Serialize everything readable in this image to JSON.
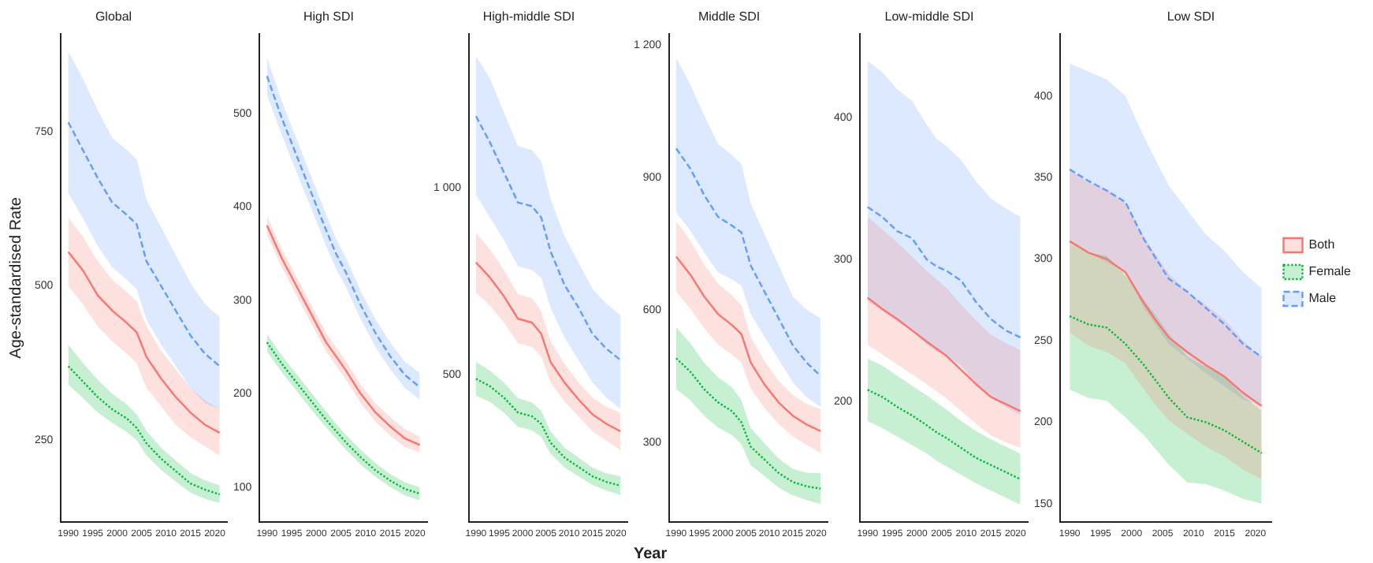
{
  "chart_data": [
    {
      "type": "line",
      "title": "Global",
      "ylabel": "Age-standardised Rate",
      "x": [
        1990,
        1993,
        1996,
        1999,
        2002,
        2004,
        2006,
        2009,
        2012,
        2015,
        2018,
        2021
      ],
      "xlim": [
        1988.5,
        2022.5
      ],
      "xticks": [
        1990,
        1995,
        2000,
        2005,
        2010,
        2015,
        2020
      ],
      "ylim": [
        118,
        908
      ],
      "yticks": [
        250,
        500,
        750
      ],
      "grid": false,
      "legend": false,
      "series": [
        {
          "color": "#f8766d",
          "line_style": "solid",
          "values": [
            555,
            525,
            485,
            460,
            440,
            425,
            385,
            350,
            320,
            295,
            275,
            262
          ],
          "lower": [
            500,
            470,
            435,
            410,
            390,
            375,
            335,
            305,
            275,
            255,
            240,
            225
          ],
          "upper": [
            610,
            580,
            540,
            510,
            490,
            475,
            435,
            395,
            365,
            335,
            315,
            300
          ]
        },
        {
          "color": "#00ba38",
          "line_style": "dotted",
          "values": [
            370,
            345,
            320,
            300,
            285,
            270,
            245,
            220,
            200,
            180,
            170,
            162
          ],
          "lower": [
            340,
            318,
            295,
            278,
            263,
            250,
            225,
            202,
            183,
            165,
            155,
            148
          ],
          "upper": [
            405,
            375,
            348,
            325,
            308,
            292,
            265,
            238,
            217,
            197,
            185,
            177
          ]
        },
        {
          "color": "#619cff",
          "line_style": "dashed",
          "values": [
            765,
            720,
            675,
            635,
            615,
            600,
            540,
            500,
            460,
            420,
            390,
            370
          ],
          "lower": [
            650,
            610,
            565,
            530,
            510,
            495,
            445,
            405,
            370,
            335,
            310,
            300
          ],
          "upper": [
            880,
            835,
            785,
            740,
            720,
            705,
            640,
            595,
            550,
            505,
            470,
            450
          ]
        }
      ]
    },
    {
      "type": "line",
      "title": "High SDI",
      "x": [
        1990,
        1993,
        1996,
        1999,
        2002,
        2004,
        2006,
        2009,
        2012,
        2015,
        2018,
        2021
      ],
      "xlim": [
        1988.5,
        2022.5
      ],
      "xticks": [
        1990,
        1995,
        2000,
        2005,
        2010,
        2015,
        2020
      ],
      "ylim": [
        63,
        585
      ],
      "yticks": [
        100,
        200,
        300,
        400,
        500
      ],
      "grid": false,
      "legend": false,
      "series": [
        {
          "color": "#f8766d",
          "line_style": "solid",
          "values": [
            380,
            345,
            315,
            285,
            255,
            240,
            225,
            200,
            180,
            165,
            152,
            145
          ],
          "lower": [
            370,
            335,
            305,
            275,
            245,
            230,
            215,
            190,
            170,
            155,
            143,
            137
          ],
          "upper": [
            390,
            355,
            325,
            295,
            265,
            250,
            235,
            210,
            190,
            175,
            162,
            154
          ]
        },
        {
          "color": "#00ba38",
          "line_style": "dotted",
          "values": [
            255,
            232,
            212,
            192,
            172,
            160,
            148,
            132,
            118,
            107,
            98,
            93
          ],
          "lower": [
            245,
            223,
            203,
            183,
            164,
            152,
            140,
            124,
            111,
            100,
            91,
            86
          ],
          "upper": [
            264,
            241,
            221,
            201,
            181,
            168,
            156,
            140,
            126,
            114,
            105,
            100
          ]
        },
        {
          "color": "#619cff",
          "line_style": "dashed",
          "values": [
            540,
            495,
            455,
            415,
            375,
            350,
            330,
            295,
            265,
            240,
            220,
            207
          ],
          "lower": [
            520,
            477,
            437,
            398,
            358,
            334,
            314,
            280,
            250,
            226,
            206,
            194
          ],
          "upper": [
            560,
            513,
            473,
            432,
            392,
            366,
            346,
            310,
            280,
            255,
            234,
            222
          ]
        }
      ]
    },
    {
      "type": "line",
      "title": "High-middle SDI",
      "x": [
        1990,
        1993,
        1996,
        1999,
        2002,
        2004,
        2006,
        2009,
        2012,
        2015,
        2018,
        2021
      ],
      "xlim": [
        1988.5,
        2022.5
      ],
      "xticks": [
        1990,
        1995,
        2000,
        2005,
        2010,
        2015,
        2020
      ],
      "ylim": [
        109,
        1409
      ],
      "yticks": [
        500,
        {
          "value": 1000,
          "label": "1 000"
        }
      ],
      "grid": false,
      "legend": false,
      "series": [
        {
          "color": "#f8766d",
          "line_style": "solid",
          "values": [
            800,
            760,
            710,
            650,
            640,
            610,
            535,
            480,
            435,
            395,
            370,
            350
          ],
          "lower": [
            720,
            685,
            640,
            585,
            575,
            550,
            480,
            430,
            390,
            350,
            325,
            300
          ],
          "upper": [
            880,
            835,
            780,
            715,
            705,
            670,
            590,
            530,
            480,
            440,
            415,
            400
          ]
        },
        {
          "color": "#00ba38",
          "line_style": "dotted",
          "values": [
            490,
            470,
            440,
            400,
            390,
            370,
            320,
            280,
            255,
            230,
            215,
            205
          ],
          "lower": [
            445,
            428,
            400,
            362,
            353,
            335,
            290,
            253,
            230,
            207,
            192,
            180
          ],
          "upper": [
            535,
            512,
            480,
            438,
            427,
            405,
            350,
            307,
            280,
            253,
            238,
            230
          ]
        },
        {
          "color": "#619cff",
          "line_style": "dashed",
          "values": [
            1190,
            1120,
            1040,
            960,
            950,
            920,
            830,
            740,
            680,
            610,
            570,
            540
          ],
          "lower": [
            980,
            920,
            860,
            790,
            780,
            760,
            680,
            600,
            540,
            480,
            440,
            410
          ],
          "upper": [
            1350,
            1290,
            1200,
            1110,
            1100,
            1070,
            970,
            870,
            800,
            730,
            690,
            660
          ]
        }
      ]
    },
    {
      "type": "line",
      "title": "Middle SDI",
      "xlabel": "Year",
      "x": [
        1990,
        1993,
        1996,
        1999,
        2002,
        2004,
        2006,
        2009,
        2012,
        2015,
        2018,
        2021
      ],
      "xlim": [
        1988.5,
        2022.5
      ],
      "xticks": [
        1990,
        1995,
        2000,
        2005,
        2010,
        2015,
        2020
      ],
      "ylim": [
        120,
        1224
      ],
      "yticks": [
        300,
        600,
        900,
        {
          "value": 1200,
          "label": "1 200"
        }
      ],
      "grid": false,
      "legend": false,
      "series": [
        {
          "color": "#f8766d",
          "line_style": "solid",
          "values": [
            720,
            680,
            630,
            590,
            565,
            545,
            480,
            430,
            390,
            360,
            340,
            325
          ],
          "lower": [
            640,
            603,
            558,
            521,
            498,
            480,
            422,
            377,
            341,
            313,
            294,
            275
          ],
          "upper": [
            800,
            757,
            702,
            659,
            632,
            610,
            538,
            483,
            439,
            407,
            386,
            375
          ]
        },
        {
          "color": "#00ba38",
          "line_style": "dotted",
          "values": [
            490,
            460,
            420,
            390,
            370,
            345,
            290,
            260,
            230,
            210,
            200,
            195
          ],
          "lower": [
            420,
            395,
            360,
            333,
            316,
            295,
            248,
            223,
            197,
            180,
            169,
            160
          ],
          "upper": [
            560,
            525,
            480,
            447,
            424,
            395,
            332,
            297,
            263,
            240,
            231,
            230
          ]
        },
        {
          "color": "#619cff",
          "line_style": "dashed",
          "values": [
            965,
            920,
            860,
            810,
            790,
            775,
            700,
            640,
            580,
            520,
            480,
            450
          ],
          "lower": [
            820,
            780,
            730,
            685,
            668,
            655,
            590,
            538,
            487,
            436,
            402,
            380
          ],
          "upper": [
            1170,
            1110,
            1040,
            975,
            950,
            930,
            840,
            770,
            700,
            630,
            600,
            580
          ]
        }
      ]
    },
    {
      "type": "line",
      "title": "Low-middle SDI",
      "x": [
        1990,
        1993,
        1996,
        1999,
        2002,
        2004,
        2006,
        2009,
        2012,
        2015,
        2018,
        2021
      ],
      "xlim": [
        1988.5,
        2022.5
      ],
      "xticks": [
        1990,
        1995,
        2000,
        2005,
        2010,
        2015,
        2020
      ],
      "ylim": [
        115,
        459
      ],
      "yticks": [
        200,
        300,
        400
      ],
      "grid": false,
      "legend": false,
      "series": [
        {
          "color": "#f8766d",
          "line_style": "solid",
          "values": [
            273,
            265,
            258,
            250,
            242,
            237,
            232,
            222,
            212,
            203,
            198,
            193
          ],
          "lower": [
            240,
            233,
            226,
            219,
            212,
            207,
            202,
            193,
            184,
            176,
            171,
            167
          ],
          "upper": [
            330,
            321,
            312,
            302,
            292,
            286,
            280,
            268,
            257,
            247,
            241,
            236
          ]
        },
        {
          "color": "#00ba38",
          "line_style": "dotted",
          "values": [
            208,
            203,
            196,
            190,
            183,
            178,
            174,
            167,
            160,
            155,
            150,
            145
          ],
          "lower": [
            186,
            181,
            175,
            169,
            163,
            158,
            154,
            148,
            142,
            137,
            132,
            127
          ],
          "upper": [
            230,
            225,
            218,
            211,
            204,
            199,
            194,
            186,
            179,
            173,
            168,
            163
          ]
        },
        {
          "color": "#619cff",
          "line_style": "dashed",
          "values": [
            337,
            330,
            320,
            315,
            300,
            295,
            292,
            285,
            270,
            258,
            250,
            245
          ],
          "lower": [
            270,
            264,
            256,
            250,
            240,
            235,
            232,
            225,
            213,
            203,
            196,
            190
          ],
          "upper": [
            440,
            432,
            420,
            412,
            395,
            385,
            380,
            370,
            355,
            343,
            336,
            330
          ]
        }
      ]
    },
    {
      "type": "line",
      "title": "Low SDI",
      "x": [
        1990,
        1993,
        1996,
        1999,
        2002,
        2004,
        2006,
        2009,
        2012,
        2015,
        2018,
        2021
      ],
      "xlim": [
        1988.5,
        2022.5
      ],
      "xticks": [
        1990,
        1995,
        2000,
        2005,
        2010,
        2015,
        2020
      ],
      "ylim": [
        139,
        438
      ],
      "yticks": [
        150,
        200,
        250,
        300,
        350,
        400
      ],
      "grid": false,
      "legend": "right",
      "series": [
        {
          "name": "Both",
          "color": "#f8766d",
          "line_style": "solid",
          "values": [
            311,
            304,
            300,
            292,
            273,
            262,
            252,
            243,
            235,
            228,
            218,
            210
          ],
          "lower": [
            255,
            247,
            243,
            236,
            220,
            210,
            201,
            193,
            185,
            179,
            171,
            165
          ],
          "upper": [
            355,
            347,
            343,
            334,
            314,
            302,
            291,
            280,
            272,
            263,
            250,
            240
          ]
        },
        {
          "name": "Female",
          "color": "#00ba38",
          "line_style": "dotted",
          "values": [
            265,
            260,
            258,
            248,
            235,
            225,
            215,
            203,
            200,
            195,
            188,
            181
          ],
          "lower": [
            220,
            215,
            213,
            203,
            192,
            183,
            174,
            163,
            162,
            158,
            153,
            150
          ],
          "upper": [
            310,
            304,
            302,
            290,
            275,
            265,
            254,
            240,
            234,
            228,
            216,
            207
          ]
        },
        {
          "name": "Male",
          "color": "#619cff",
          "line_style": "dashed",
          "values": [
            355,
            348,
            342,
            335,
            312,
            300,
            288,
            280,
            270,
            260,
            248,
            240
          ],
          "lower": [
            310,
            304,
            298,
            292,
            270,
            259,
            248,
            239,
            230,
            222,
            214,
            210
          ],
          "upper": [
            420,
            415,
            410,
            400,
            375,
            360,
            345,
            330,
            315,
            305,
            292,
            282
          ]
        }
      ]
    }
  ]
}
